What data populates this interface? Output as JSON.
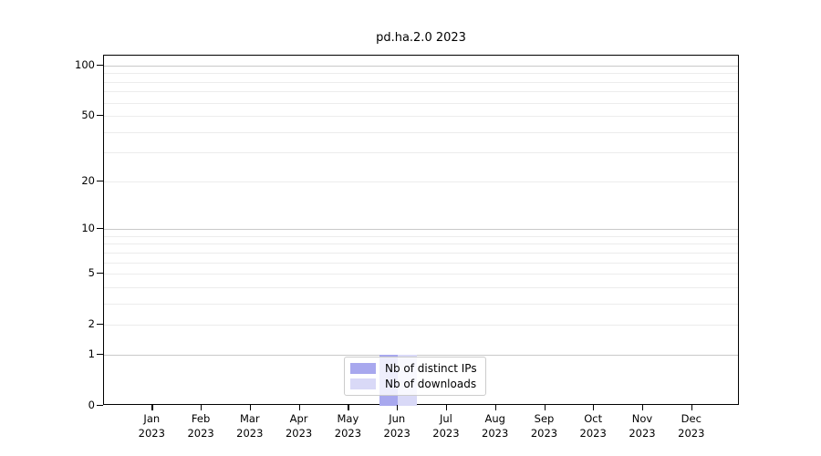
{
  "figure": {
    "title": "pd.ha.2.0 2023"
  },
  "chart_data": {
    "type": "bar",
    "title": "pd.ha.2.0 2023",
    "categories": [
      "Jan 2023",
      "Feb 2023",
      "Mar 2023",
      "Apr 2023",
      "May 2023",
      "Jun 2023",
      "Jul 2023",
      "Aug 2023",
      "Sep 2023",
      "Oct 2023",
      "Nov 2023",
      "Dec 2023"
    ],
    "x_tick_labels": [
      {
        "month": "Jan",
        "year": "2023"
      },
      {
        "month": "Feb",
        "year": "2023"
      },
      {
        "month": "Mar",
        "year": "2023"
      },
      {
        "month": "Apr",
        "year": "2023"
      },
      {
        "month": "May",
        "year": "2023"
      },
      {
        "month": "Jun",
        "year": "2023"
      },
      {
        "month": "Jul",
        "year": "2023"
      },
      {
        "month": "Aug",
        "year": "2023"
      },
      {
        "month": "Sep",
        "year": "2023"
      },
      {
        "month": "Oct",
        "year": "2023"
      },
      {
        "month": "Nov",
        "year": "2023"
      },
      {
        "month": "Dec",
        "year": "2023"
      }
    ],
    "series": [
      {
        "name": "Nb of distinct IPs",
        "color": "#a8a8ee",
        "values": [
          0,
          0,
          0,
          0,
          0,
          1,
          0,
          0,
          0,
          0,
          0,
          0
        ]
      },
      {
        "name": "Nb of downloads",
        "color": "#d9d9f7",
        "values": [
          0,
          0,
          0,
          0,
          0,
          1,
          0,
          0,
          0,
          0,
          0,
          0
        ]
      }
    ],
    "y_axis": {
      "scale": "log1p",
      "major_ticks": [
        100,
        50,
        20,
        10,
        5,
        2,
        1,
        0
      ],
      "gridlines": [
        100,
        90,
        80,
        70,
        60,
        50,
        40,
        30,
        20,
        10,
        9,
        8,
        7,
        6,
        5,
        4,
        3,
        2,
        1
      ],
      "emphasized_gridlines": [
        100,
        10,
        1
      ],
      "ylim": [
        0,
        115
      ]
    },
    "legend": {
      "position": "bottom-center",
      "entries": [
        "Nb of distinct IPs",
        "Nb of downloads"
      ]
    },
    "grid": "horizontal",
    "xlabel": "",
    "ylabel": ""
  },
  "colors": {
    "bar_distinct_ips": "#a8a8ee",
    "bar_downloads": "#d9d9f7",
    "grid_minor": "#ececec",
    "grid_emphasized": "#c9c9c9",
    "spine": "#000000",
    "background": "#ffffff"
  }
}
